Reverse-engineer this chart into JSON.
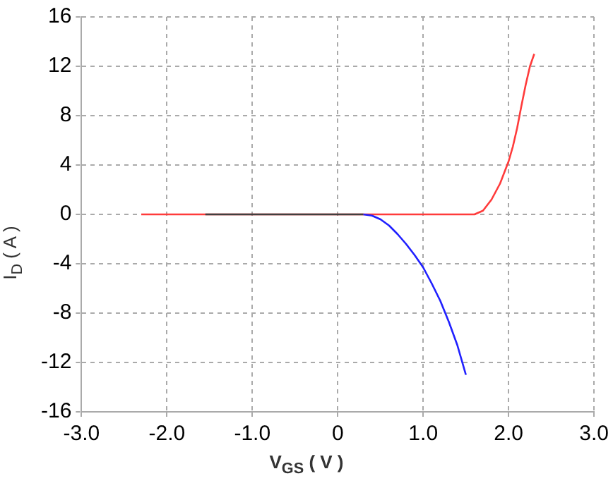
{
  "chart_data": {
    "type": "line",
    "xlabel": "V$_{GS}$ ( V )",
    "ylabel": "I$_{D}$ ( A )",
    "xlim": [
      -3,
      3
    ],
    "xticks": [
      {
        "value": -3,
        "label": "-3.0"
      },
      {
        "value": -2,
        "label": "-2.0"
      },
      {
        "value": -1,
        "label": "-1.0"
      },
      0,
      {
        "value": 1,
        "label": "1.0"
      },
      {
        "value": 2,
        "label": "2.0"
      },
      {
        "value": 3,
        "label": "3.0"
      }
    ],
    "ylim": [
      -16,
      16
    ],
    "yticks": [
      -16,
      -12,
      -8,
      -4,
      0,
      4,
      8,
      12,
      16
    ],
    "grid": true,
    "legend": false,
    "marker": "none",
    "line_style": "solid",
    "series": [
      {
        "color": "#ff3b3b",
        "x": [
          -2.3,
          1.6,
          1.7,
          1.8,
          1.9,
          2.0,
          2.05,
          2.1,
          2.15,
          2.2,
          2.25,
          2.3
        ],
        "values": [
          0,
          0,
          0.3,
          1.2,
          2.5,
          4.3,
          5.5,
          7.0,
          8.8,
          10.5,
          12,
          13
        ]
      },
      {
        "color": "#404040",
        "x": [
          -1.55,
          0.3
        ],
        "values": [
          0,
          0
        ]
      },
      {
        "color": "#2020ff",
        "x": [
          0.3,
          0.4,
          0.5,
          0.6,
          0.7,
          0.8,
          0.9,
          1.0,
          1.1,
          1.2,
          1.3,
          1.4,
          1.5
        ],
        "values": [
          0,
          -0.1,
          -0.4,
          -0.9,
          -1.6,
          -2.4,
          -3.3,
          -4.3,
          -5.6,
          -7.0,
          -8.7,
          -10.6,
          -13.0
        ]
      }
    ]
  }
}
